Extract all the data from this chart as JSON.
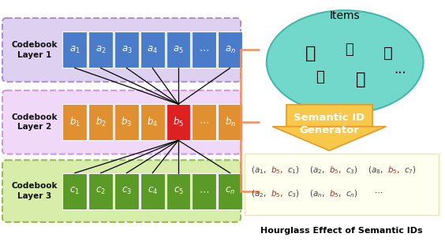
{
  "bg_color": "#ffffff",
  "layer1_box_bg": "#ddd0f0",
  "layer2_box_bg": "#f0d8f8",
  "layer3_box_bg": "#d8edaa",
  "layer1_box_edge": "#b090cc",
  "layer2_box_edge": "#cc99dd",
  "layer3_box_edge": "#99bb55",
  "layer1_cell_color": "#4a7cc9",
  "layer2_cell_color": "#e09030",
  "layer2_highlight_color": "#dd2020",
  "layer3_cell_color": "#5c9a28",
  "layer1_label": "Codebook\nLayer 1",
  "layer2_label": "Codebook\nLayer 2",
  "layer3_label": "Codebook\nLayer 3",
  "layer1_cells": [
    "a_1",
    "a_2",
    "a_3",
    "a_4",
    "a_5",
    "...",
    "a_n"
  ],
  "layer2_cells": [
    "b_1",
    "b_2",
    "b_3",
    "b_4",
    "b_5",
    "...",
    "b_n"
  ],
  "layer3_cells": [
    "c_1",
    "c_2",
    "c_3",
    "c_4",
    "c_5",
    "...",
    "c_n"
  ],
  "highlight_col": 4,
  "items_ellipse_color": "#72d8cc",
  "items_ellipse_edge": "#44b8aa",
  "arrow_face_color": "#f8c84a",
  "arrow_edge_color": "#e8982a",
  "bracket_color": "#f09060",
  "eq_box_color": "#fffff0",
  "eq_box_edge": "#e8e8b0",
  "bottom_label": "Hourglass Effect of Semantic IDs",
  "title_items": "Items",
  "arrow_label": "Semantic ID\nGenerator",
  "eq_red_color": "#dd2020",
  "eq_black_color": "#444444"
}
